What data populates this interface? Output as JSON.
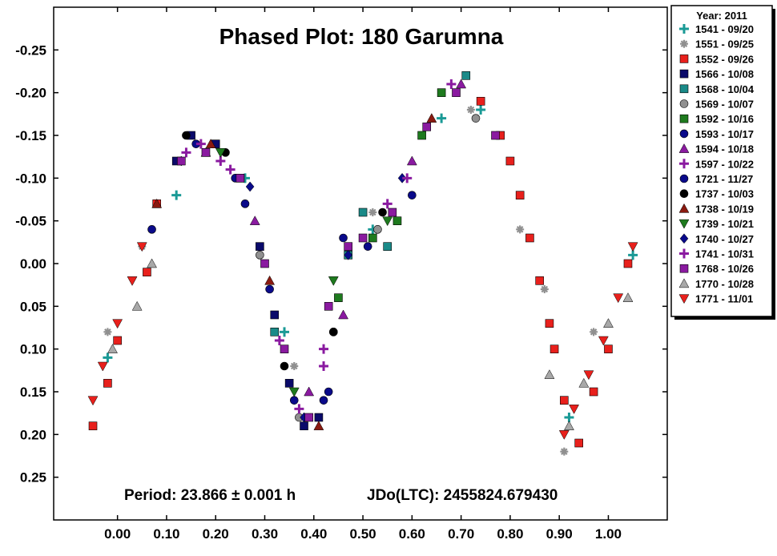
{
  "chart_data": {
    "type": "scatter",
    "title": "Phased Plot: 180 Garumna",
    "xlabel": "",
    "ylabel": "",
    "xlim": [
      -0.13,
      1.12
    ],
    "ylim": [
      0.3,
      -0.3
    ],
    "y_inverted": true,
    "grid": false,
    "legend_position": "right",
    "xticks": [
      "0.00",
      "0.10",
      "0.20",
      "0.30",
      "0.40",
      "0.50",
      "0.60",
      "0.70",
      "0.80",
      "0.90",
      "1.00"
    ],
    "yticks": [
      "-0.25",
      "-0.20",
      "-0.15",
      "-0.10",
      "-0.05",
      "0.00",
      "0.05",
      "0.10",
      "0.15",
      "0.20",
      "0.25"
    ],
    "annotations": {
      "period": "Period: 23.866 ± 0.001 h",
      "epoch": "JDo(LTC): 2455824.679430"
    },
    "legend_title": "Year: 2011",
    "series": [
      {
        "name": "1541 - 09/20",
        "marker": "plus",
        "color": "#1a9a96",
        "x": [
          -0.02,
          0.12,
          0.26,
          0.34,
          0.52,
          0.66,
          0.74,
          0.92,
          1.05
        ],
        "y": [
          0.11,
          -0.08,
          -0.1,
          0.08,
          -0.04,
          -0.17,
          -0.18,
          0.18,
          -0.01
        ]
      },
      {
        "name": "1551 - 09/25",
        "marker": "asterisk",
        "color": "#909090",
        "x": [
          -0.02,
          0.05,
          0.3,
          0.36,
          0.52,
          0.72,
          0.82,
          0.87,
          0.91,
          0.97
        ],
        "y": [
          0.08,
          -0.02,
          0.0,
          0.12,
          -0.06,
          -0.18,
          -0.04,
          0.03,
          0.22,
          0.08
        ]
      },
      {
        "name": "1552 - 09/26",
        "marker": "square",
        "color": "#e8201c",
        "x": [
          -0.05,
          -0.02,
          0.0,
          0.06,
          0.08,
          0.74,
          0.78,
          0.8,
          0.82,
          0.84,
          0.86,
          0.88,
          0.89,
          0.91,
          0.94,
          0.97,
          1.0,
          1.04
        ],
        "y": [
          0.19,
          0.14,
          0.09,
          0.01,
          -0.07,
          -0.19,
          -0.15,
          -0.12,
          -0.08,
          -0.03,
          0.02,
          0.07,
          0.1,
          0.16,
          0.21,
          0.15,
          0.1,
          0.0
        ]
      },
      {
        "name": "1566 - 10/08",
        "marker": "square",
        "color": "#0a0a6a",
        "x": [
          0.12,
          0.15,
          0.2,
          0.25,
          0.29,
          0.32,
          0.35,
          0.38,
          0.41
        ],
        "y": [
          -0.12,
          -0.15,
          -0.14,
          -0.1,
          -0.02,
          0.06,
          0.14,
          0.19,
          0.18
        ]
      },
      {
        "name": "1568 - 10/04",
        "marker": "square",
        "color": "#1a8a88",
        "x": [
          0.32,
          0.47,
          0.5,
          0.55,
          0.71
        ],
        "y": [
          0.08,
          -0.01,
          -0.06,
          -0.02,
          -0.22
        ]
      },
      {
        "name": "1569 - 10/07",
        "marker": "circle",
        "color": "#909090",
        "x": [
          0.29,
          0.37,
          0.44,
          0.53,
          0.73
        ],
        "y": [
          -0.01,
          0.18,
          0.08,
          -0.04,
          -0.17
        ]
      },
      {
        "name": "1592 - 10/16",
        "marker": "square",
        "color": "#1e7a1e",
        "x": [
          0.45,
          0.52,
          0.57,
          0.62,
          0.66
        ],
        "y": [
          0.04,
          -0.03,
          -0.05,
          -0.15,
          -0.2
        ]
      },
      {
        "name": "1593 - 10/17",
        "marker": "circle",
        "color": "#0a0a8a",
        "x": [
          0.07,
          0.24,
          0.31,
          0.42,
          0.46,
          0.6
        ],
        "y": [
          -0.04,
          -0.1,
          0.03,
          0.16,
          -0.03,
          -0.08
        ]
      },
      {
        "name": "1594 - 10/18",
        "marker": "triangle-up",
        "color": "#8a1aa0",
        "x": [
          0.18,
          0.28,
          0.39,
          0.46,
          0.6,
          0.7
        ],
        "y": [
          -0.13,
          -0.05,
          0.15,
          0.06,
          -0.12,
          -0.21
        ]
      },
      {
        "name": "1597 - 10/22",
        "marker": "plus",
        "color": "#8a1aa0",
        "x": [
          0.14,
          0.21,
          0.33,
          0.42,
          0.55,
          0.68
        ],
        "y": [
          -0.13,
          -0.12,
          0.09,
          0.12,
          -0.07,
          -0.21
        ]
      },
      {
        "name": "1721 - 11/27",
        "marker": "circle",
        "color": "#0a0a8a",
        "x": [
          0.16,
          0.26,
          0.36,
          0.43,
          0.51
        ],
        "y": [
          -0.14,
          -0.07,
          0.16,
          0.15,
          -0.02
        ]
      },
      {
        "name": "1737 - 10/03",
        "marker": "circle",
        "color": "#000000",
        "x": [
          0.14,
          0.22,
          0.34,
          0.44,
          0.54
        ],
        "y": [
          -0.15,
          -0.13,
          0.12,
          0.08,
          -0.06
        ]
      },
      {
        "name": "1738 - 10/19",
        "marker": "triangle-up",
        "color": "#8a1a10",
        "x": [
          0.08,
          0.19,
          0.31,
          0.41,
          0.64
        ],
        "y": [
          -0.07,
          -0.14,
          0.02,
          0.19,
          -0.17
        ]
      },
      {
        "name": "1739 - 10/21",
        "marker": "triangle-down",
        "color": "#1e7a1e",
        "x": [
          0.21,
          0.36,
          0.44,
          0.55
        ],
        "y": [
          -0.13,
          0.15,
          0.02,
          -0.05
        ]
      },
      {
        "name": "1740 - 10/27",
        "marker": "diamond",
        "color": "#0a0a8a",
        "x": [
          0.13,
          0.27,
          0.38,
          0.47,
          0.58
        ],
        "y": [
          -0.12,
          -0.09,
          0.18,
          -0.01,
          -0.1
        ]
      },
      {
        "name": "1741 - 10/31",
        "marker": "plus",
        "color": "#8a1aa0",
        "x": [
          0.17,
          0.23,
          0.37,
          0.42,
          0.59
        ],
        "y": [
          -0.14,
          -0.11,
          0.17,
          0.1,
          -0.1
        ]
      },
      {
        "name": "1768 - 10/26",
        "marker": "square",
        "color": "#8a1aa0",
        "x": [
          0.13,
          0.18,
          0.25,
          0.3,
          0.34,
          0.39,
          0.43,
          0.47,
          0.5,
          0.56,
          0.63,
          0.69,
          0.77
        ],
        "y": [
          -0.12,
          -0.13,
          -0.1,
          0.0,
          0.1,
          0.18,
          0.05,
          -0.02,
          -0.03,
          -0.06,
          -0.16,
          -0.2,
          -0.15
        ]
      },
      {
        "name": "1770 - 10/28",
        "marker": "triangle-up",
        "color": "#a8a8a8",
        "x": [
          -0.01,
          0.04,
          0.07,
          0.88,
          0.92,
          0.95,
          1.0,
          1.04
        ],
        "y": [
          0.1,
          0.05,
          0.0,
          0.13,
          0.19,
          0.14,
          0.07,
          0.04
        ]
      },
      {
        "name": "1771 - 11/01",
        "marker": "triangle-down",
        "color": "#e8201c",
        "x": [
          -0.05,
          -0.03,
          0.0,
          0.03,
          0.05,
          0.91,
          0.93,
          0.96,
          0.99,
          1.02,
          1.05
        ],
        "y": [
          0.16,
          0.12,
          0.07,
          0.02,
          -0.02,
          0.2,
          0.17,
          0.13,
          0.09,
          0.04,
          -0.02
        ]
      }
    ]
  }
}
